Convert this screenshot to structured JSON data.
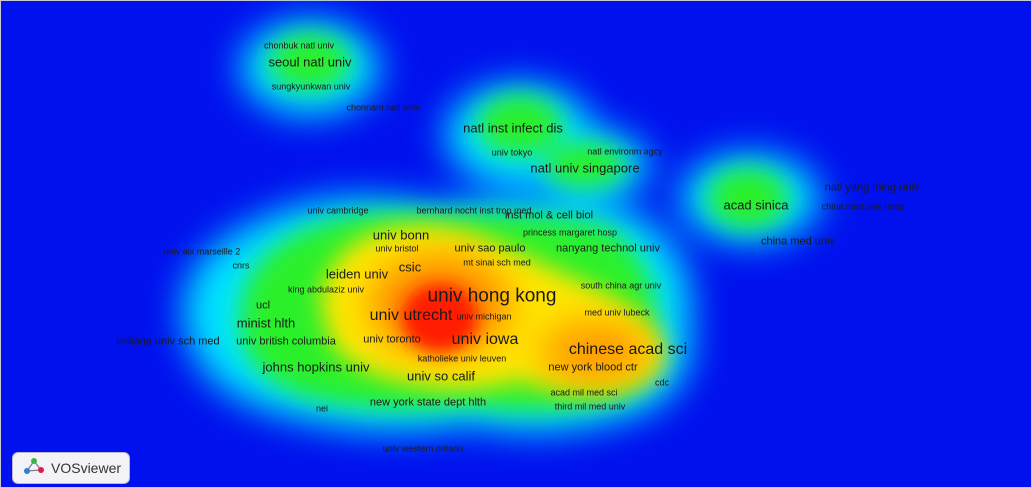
{
  "app": {
    "logo_label": "VOSviewer"
  },
  "colors": {
    "background": "#0011ee",
    "density_scale": [
      "#0011ee",
      "#00ffff",
      "#00ff00",
      "#ffff00",
      "#ff0000"
    ]
  },
  "view": {
    "type": "density visualization"
  },
  "labels": [
    {
      "text": "chonbuk natl univ",
      "size": "xs"
    },
    {
      "text": "seoul natl univ",
      "size": "m"
    },
    {
      "text": "sungkyunkwan univ",
      "size": "xs"
    },
    {
      "text": "chonnam natl univ",
      "size": "xs"
    },
    {
      "text": "natl inst infect dis",
      "size": "m"
    },
    {
      "text": "univ tokyo",
      "size": "xs"
    },
    {
      "text": "natl environm agcy",
      "size": "xs"
    },
    {
      "text": "natl univ singapore",
      "size": "m"
    },
    {
      "text": "natl yang ming univ",
      "size": "s"
    },
    {
      "text": "acad sinica",
      "size": "m"
    },
    {
      "text": "china med univ hosp",
      "size": "xs"
    },
    {
      "text": "china med univ",
      "size": "s"
    },
    {
      "text": "univ cambridge",
      "size": "xs"
    },
    {
      "text": "bernhard nocht inst trop med",
      "size": "xs"
    },
    {
      "text": "inst mol & cell biol",
      "size": "s"
    },
    {
      "text": "princess margaret hosp",
      "size": "xs"
    },
    {
      "text": "univ bonn",
      "size": "m"
    },
    {
      "text": "univ bristol",
      "size": "xs"
    },
    {
      "text": "univ sao paulo",
      "size": "s"
    },
    {
      "text": "nanyang technol univ",
      "size": "s"
    },
    {
      "text": "univ aix marseille 2",
      "size": "xs"
    },
    {
      "text": "mt sinai sch med",
      "size": "xs"
    },
    {
      "text": "cnrs",
      "size": "xs"
    },
    {
      "text": "csic",
      "size": "m"
    },
    {
      "text": "leiden univ",
      "size": "m"
    },
    {
      "text": "south china agr univ",
      "size": "xs"
    },
    {
      "text": "king abdulaziz univ",
      "size": "xs"
    },
    {
      "text": "univ hong kong",
      "size": "xl"
    },
    {
      "text": "ucl",
      "size": "s"
    },
    {
      "text": "med univ lubeck",
      "size": "xs"
    },
    {
      "text": "univ utrecht",
      "size": "l"
    },
    {
      "text": "univ michigan",
      "size": "xs"
    },
    {
      "text": "minist hlth",
      "size": "m"
    },
    {
      "text": "indiana univ sch med",
      "size": "s"
    },
    {
      "text": "univ british columbia",
      "size": "s"
    },
    {
      "text": "univ toronto",
      "size": "s"
    },
    {
      "text": "univ iowa",
      "size": "l"
    },
    {
      "text": "chinese acad sci",
      "size": "l"
    },
    {
      "text": "katholieke univ leuven",
      "size": "xs"
    },
    {
      "text": "johns hopkins univ",
      "size": "m"
    },
    {
      "text": "new york blood ctr",
      "size": "s"
    },
    {
      "text": "univ so calif",
      "size": "m"
    },
    {
      "text": "cdc",
      "size": "xs"
    },
    {
      "text": "acad mil med sci",
      "size": "xs"
    },
    {
      "text": "new york state dept hlth",
      "size": "s"
    },
    {
      "text": "third mil med univ",
      "size": "xs"
    },
    {
      "text": "nei",
      "size": "xs"
    },
    {
      "text": "univ western ontario",
      "size": "xs"
    }
  ]
}
